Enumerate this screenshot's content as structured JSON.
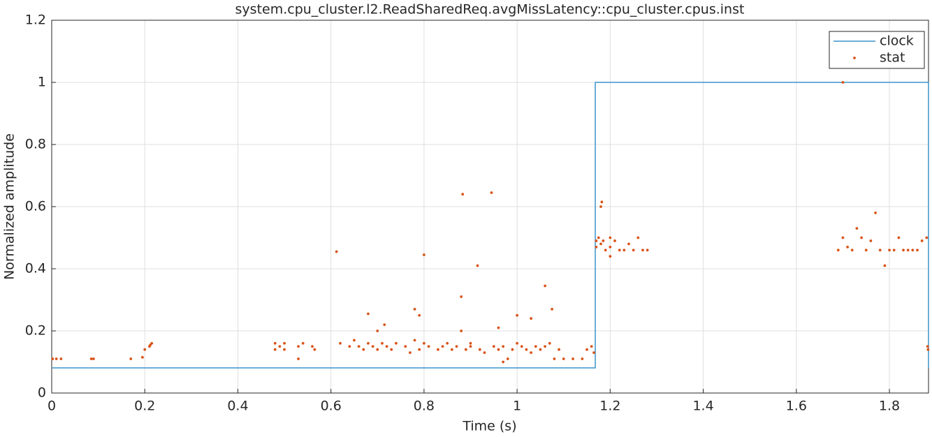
{
  "chart_data": {
    "type": "line",
    "title": "system.cpu_cluster.l2.ReadSharedReq.avgMissLatency::cpu_cluster.cpus.inst",
    "x_label": "Time (s)",
    "y_label": "Normalized amplitude",
    "xlim": [
      0,
      1.884
    ],
    "ylim": [
      0,
      1.2
    ],
    "xticks": [
      0,
      0.2,
      0.4,
      0.6,
      0.8,
      1,
      1.2,
      1.4,
      1.6,
      1.8
    ],
    "yticks": [
      0,
      0.2,
      0.4,
      0.6,
      0.8,
      1,
      1.2
    ],
    "grid": true,
    "legend": "northeast",
    "series": [
      {
        "name": "clock",
        "type": "line",
        "color": "#3a94cc",
        "x": [
          0,
          1.168,
          1.168,
          1.884,
          1.884
        ],
        "values": [
          0.081,
          0.081,
          1,
          1,
          0.081
        ]
      },
      {
        "name": "stat",
        "type": "scatter",
        "color": "#d95319",
        "x": [
          0.002,
          0.01,
          0.02,
          0.085,
          0.09,
          0.17,
          0.195,
          0.2,
          0.21,
          0.215,
          0.212,
          0.48,
          0.48,
          0.49,
          0.5,
          0.5,
          0.53,
          0.53,
          0.54,
          0.56,
          0.565,
          0.612,
          0.62,
          0.64,
          0.65,
          0.66,
          0.67,
          0.68,
          0.68,
          0.69,
          0.7,
          0.7,
          0.71,
          0.715,
          0.72,
          0.73,
          0.74,
          0.76,
          0.77,
          0.78,
          0.78,
          0.79,
          0.79,
          0.8,
          0.8,
          0.81,
          0.83,
          0.84,
          0.85,
          0.86,
          0.87,
          0.883,
          0.88,
          0.88,
          0.89,
          0.9,
          0.9,
          0.915,
          0.92,
          0.93,
          0.945,
          0.95,
          0.96,
          0.96,
          0.97,
          0.97,
          0.98,
          0.99,
          1.0,
          1.0,
          1.01,
          1.02,
          1.03,
          1.03,
          1.04,
          1.05,
          1.06,
          1.06,
          1.07,
          1.075,
          1.08,
          1.09,
          1.1,
          1.12,
          1.14,
          1.15,
          1.16,
          1.165,
          1.17,
          1.17,
          1.175,
          1.18,
          1.18,
          1.182,
          1.185,
          1.19,
          1.2,
          1.2,
          1.2,
          1.21,
          1.22,
          1.23,
          1.24,
          1.25,
          1.26,
          1.27,
          1.28,
          1.69,
          1.7,
          1.7,
          1.71,
          1.72,
          1.73,
          1.74,
          1.75,
          1.76,
          1.77,
          1.78,
          1.79,
          1.8,
          1.81,
          1.82,
          1.83,
          1.84,
          1.85,
          1.86,
          1.87,
          1.88,
          1.882,
          1.883
        ],
        "values": [
          0.11,
          0.11,
          0.11,
          0.11,
          0.11,
          0.11,
          0.115,
          0.14,
          0.15,
          0.16,
          0.155,
          0.14,
          0.16,
          0.15,
          0.14,
          0.16,
          0.11,
          0.15,
          0.16,
          0.15,
          0.14,
          0.455,
          0.16,
          0.15,
          0.17,
          0.15,
          0.14,
          0.16,
          0.255,
          0.15,
          0.14,
          0.2,
          0.16,
          0.22,
          0.15,
          0.14,
          0.16,
          0.15,
          0.13,
          0.17,
          0.27,
          0.25,
          0.14,
          0.445,
          0.16,
          0.15,
          0.14,
          0.15,
          0.16,
          0.14,
          0.15,
          0.64,
          0.31,
          0.2,
          0.14,
          0.15,
          0.16,
          0.41,
          0.14,
          0.13,
          0.645,
          0.15,
          0.14,
          0.21,
          0.1,
          0.15,
          0.11,
          0.14,
          0.16,
          0.25,
          0.15,
          0.14,
          0.13,
          0.24,
          0.15,
          0.14,
          0.15,
          0.345,
          0.16,
          0.27,
          0.11,
          0.14,
          0.11,
          0.11,
          0.11,
          0.14,
          0.15,
          0.13,
          0.49,
          0.47,
          0.5,
          0.48,
          0.6,
          0.615,
          0.49,
          0.46,
          0.5,
          0.47,
          0.44,
          0.49,
          0.46,
          0.46,
          0.48,
          0.46,
          0.5,
          0.46,
          0.46,
          0.46,
          1.0,
          0.5,
          0.47,
          0.46,
          0.53,
          0.5,
          0.46,
          0.49,
          0.58,
          0.46,
          0.41,
          0.46,
          0.46,
          0.5,
          0.46,
          0.46,
          0.46,
          0.46,
          0.49,
          0.5,
          0.15,
          0.14
        ]
      }
    ]
  }
}
